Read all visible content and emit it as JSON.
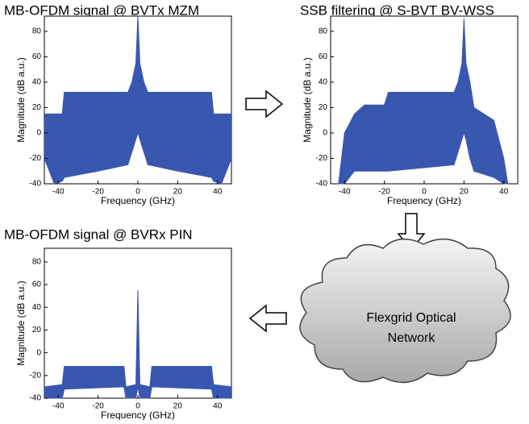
{
  "chart_data": [
    {
      "type": "area",
      "title": "MB-OFDM signal @ BVTx MZM",
      "xlabel": "Frequency (GHz)",
      "ylabel": "Magnitude (dB a.u.)",
      "xlim": [
        -47,
        47
      ],
      "ylim": [
        -40,
        92
      ],
      "xticks": [
        -40,
        -20,
        0,
        20,
        40
      ],
      "yticks": [
        -40,
        -20,
        0,
        20,
        40,
        60,
        80
      ],
      "color": "#3a57b0",
      "x": [
        -47,
        -42,
        -38,
        -37,
        -20,
        -5,
        -3,
        -1,
        0,
        1,
        3,
        5,
        20,
        37,
        38,
        42,
        47
      ],
      "upper": [
        15,
        15,
        15,
        32,
        32,
        32,
        40,
        55,
        92,
        55,
        40,
        32,
        32,
        32,
        15,
        15,
        15
      ],
      "lower": [
        -20,
        -40,
        -38,
        -35,
        -30,
        -25,
        -15,
        -5,
        0,
        -5,
        -15,
        -25,
        -30,
        -35,
        -38,
        -40,
        -20
      ]
    },
    {
      "type": "area",
      "title": "SSB filtering @ S-BVT BV-WSS",
      "xlabel": "Frequency (GHz)",
      "ylabel": "Magnitude (dB a.u.)",
      "xlim": [
        -47,
        47
      ],
      "ylim": [
        -40,
        92
      ],
      "xticks": [
        -40,
        -20,
        0,
        20,
        40
      ],
      "yticks": [
        -40,
        -20,
        0,
        20,
        40,
        60,
        80
      ],
      "color": "#3a57b0",
      "x": [
        -43,
        -40,
        -35,
        -30,
        -20,
        -18,
        15,
        17,
        19,
        20,
        21,
        23,
        25,
        35,
        40,
        42
      ],
      "upper": [
        -40,
        0,
        15,
        22,
        22,
        32,
        32,
        40,
        55,
        90,
        55,
        40,
        20,
        10,
        -20,
        -40
      ],
      "lower": [
        -40,
        -40,
        -30,
        -30,
        -30,
        -30,
        -25,
        -15,
        -5,
        0,
        -5,
        -20,
        -30,
        -35,
        -40,
        -40
      ]
    },
    {
      "type": "area",
      "title": "MB-OFDM signal @ BVRx PIN",
      "xlabel": "Frequency (GHz)",
      "ylabel": "Magnitude (dB a.u.)",
      "xlim": [
        -47,
        47
      ],
      "ylim": [
        -40,
        92
      ],
      "xticks": [
        -40,
        -20,
        0,
        20,
        40
      ],
      "yticks": [
        -40,
        -20,
        0,
        20,
        40,
        60,
        80
      ],
      "color": "#3a57b0",
      "x": [
        -47,
        -38,
        -37,
        -7,
        -6,
        -1,
        0,
        1,
        6,
        7,
        37,
        38,
        47
      ],
      "upper": [
        -30,
        -28,
        -12,
        -12,
        -30,
        -28,
        55,
        -28,
        -30,
        -12,
        -12,
        -28,
        -30
      ],
      "lower": [
        -40,
        -40,
        -32,
        -30,
        -40,
        -40,
        -30,
        -40,
        -40,
        -30,
        -32,
        -40,
        -40
      ]
    }
  ],
  "diagram": {
    "cloud_label": [
      "Flexgrid Optical",
      "Network"
    ]
  }
}
